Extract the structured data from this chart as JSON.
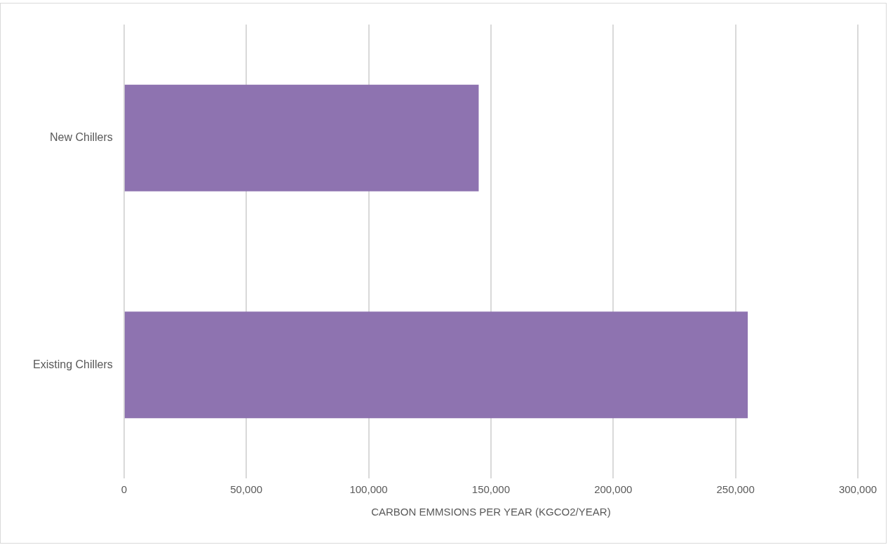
{
  "chart_data": {
    "type": "bar",
    "orientation": "horizontal",
    "xlabel": "CARBON EMMSIONS PER YEAR (KGCO2/YEAR)",
    "categories": [
      "New Chillers",
      "Existing Chillers"
    ],
    "values": [
      145000,
      255000
    ],
    "color": "#8e73b0",
    "xlim": [
      0,
      300000
    ],
    "xticks": [
      {
        "value": 0,
        "label": "0"
      },
      {
        "value": 50000,
        "label": "50,000"
      },
      {
        "value": 100000,
        "label": "100,000"
      },
      {
        "value": 150000,
        "label": "150,000"
      },
      {
        "value": 200000,
        "label": "200,000"
      },
      {
        "value": 250000,
        "label": "250,000"
      },
      {
        "value": 300000,
        "label": "300,000"
      }
    ],
    "grid": "x",
    "legend": false
  }
}
